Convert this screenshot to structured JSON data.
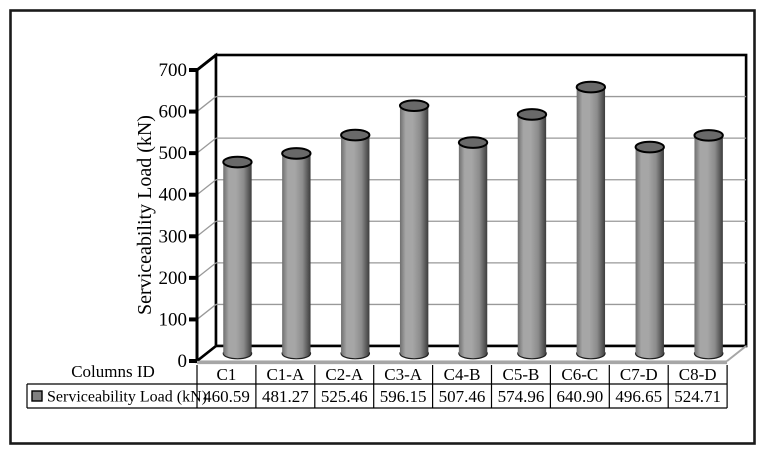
{
  "figure": {
    "background": "#ffffff",
    "border_color": "#1a1a1a"
  },
  "chart_data": {
    "type": "bar",
    "style": "3d-cylinder",
    "title": "",
    "xlabel": "Columns ID",
    "ylabel": "Serviceability Load (kN)",
    "categories": [
      "C1",
      "C1-A",
      "C2-A",
      "C3-A",
      "C4-B",
      "C5-B",
      "C6-C",
      "C7-D",
      "C8-D"
    ],
    "series": [
      {
        "name": "Serviceability Load (kN)",
        "values": [
          460.59,
          481.27,
          525.46,
          596.15,
          507.46,
          574.96,
          640.9,
          496.65,
          524.71
        ]
      }
    ],
    "value_labels": [
      "460.59",
      "481.27",
      "525.46",
      "596.15",
      "507.46",
      "574.96",
      "640.90",
      "496.65",
      "524.71"
    ],
    "ylim": [
      0,
      700
    ],
    "ytick_step": 100,
    "ytick_labels": [
      "0",
      "100",
      "200",
      "300",
      "400",
      "500",
      "600",
      "700"
    ],
    "grid": "horizontal-gray",
    "legend_position": "data-table-left-cell"
  },
  "data_table": {
    "corner_label": "Columns ID",
    "columns": [
      "C1",
      "C1-A",
      "C2-A",
      "C3-A",
      "C4-B",
      "C5-B",
      "C6-C",
      "C7-D",
      "C8-D"
    ],
    "rows": [
      {
        "label": "Serviceability Load (kN)",
        "values": [
          "460.59",
          "481.27",
          "525.46",
          "596.15",
          "507.46",
          "574.96",
          "640.90",
          "496.65",
          "524.71"
        ]
      }
    ]
  },
  "colors": {
    "cylinder_body_light": "#a6a6a6",
    "cylinder_body_mid": "#8c8c8c",
    "cylinder_body_dark": "#3c3c3c",
    "cylinder_body_edge": "#6f6f6f",
    "cylinder_top": "#696969",
    "gridline": "#999999",
    "wall_stroke": "#000000",
    "floor_edge": "#a6a6a6",
    "legend_marker_fill": "#808080"
  }
}
